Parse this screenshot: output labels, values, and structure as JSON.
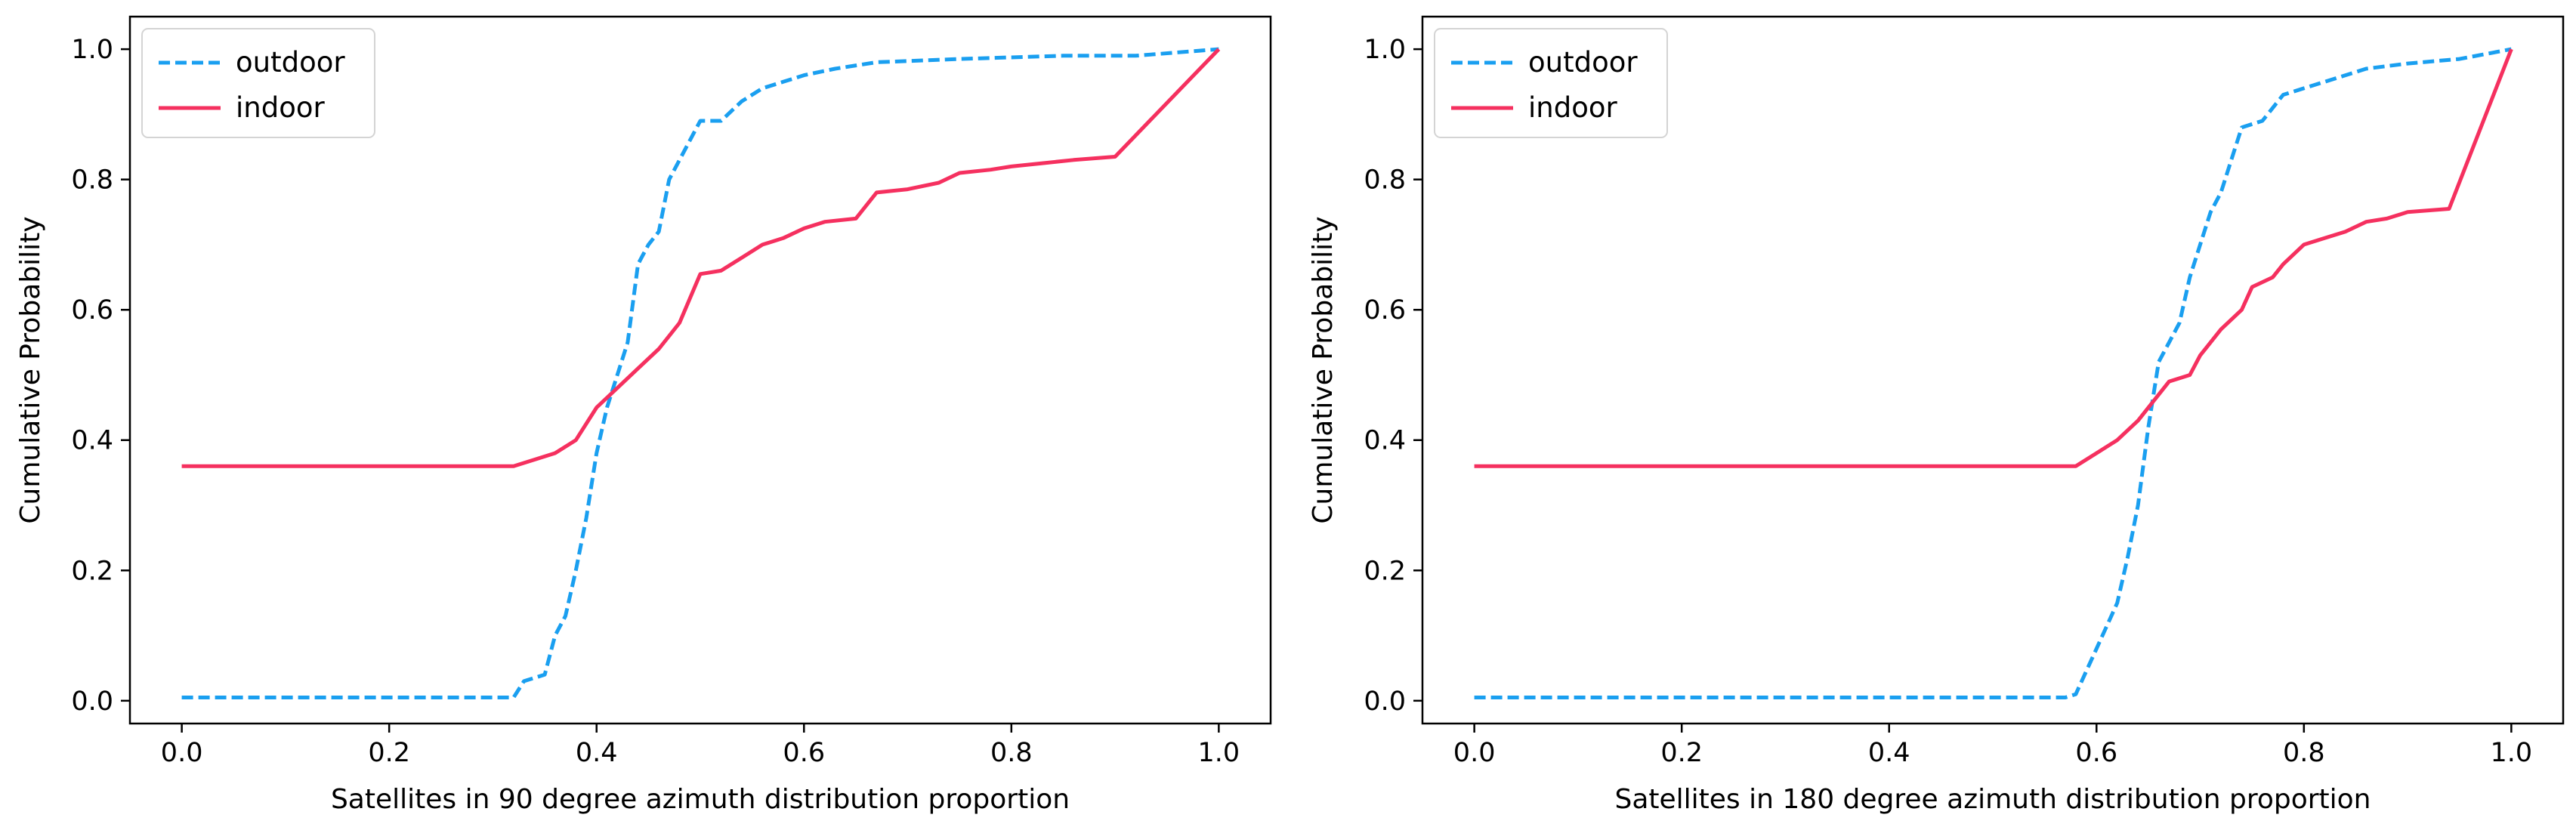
{
  "chart_data": [
    {
      "type": "line",
      "xlabel": "Satellites in 90 degree azimuth distribution proportion",
      "ylabel": "Cumulative Probability",
      "xlim": [
        -0.05,
        1.05
      ],
      "ylim": [
        -0.035,
        1.05
      ],
      "xticks": [
        0.0,
        0.2,
        0.4,
        0.6,
        0.8,
        1.0
      ],
      "xtick_labels": [
        "0.0",
        "0.2",
        "0.4",
        "0.6",
        "0.8",
        "1.0"
      ],
      "yticks": [
        0.0,
        0.2,
        0.4,
        0.6,
        0.8,
        1.0
      ],
      "ytick_labels": [
        "0.0",
        "0.2",
        "0.4",
        "0.6",
        "0.8",
        "1.0"
      ],
      "grid": false,
      "legend": "top-left",
      "series": [
        {
          "name": "outdoor",
          "style": "dashed",
          "color": "#1a9ff0",
          "points": [
            [
              0.0,
              0.005
            ],
            [
              0.32,
              0.005
            ],
            [
              0.33,
              0.03
            ],
            [
              0.35,
              0.04
            ],
            [
              0.36,
              0.1
            ],
            [
              0.37,
              0.13
            ],
            [
              0.38,
              0.2
            ],
            [
              0.39,
              0.28
            ],
            [
              0.4,
              0.38
            ],
            [
              0.41,
              0.45
            ],
            [
              0.42,
              0.5
            ],
            [
              0.43,
              0.55
            ],
            [
              0.44,
              0.67
            ],
            [
              0.45,
              0.7
            ],
            [
              0.46,
              0.72
            ],
            [
              0.47,
              0.8
            ],
            [
              0.48,
              0.83
            ],
            [
              0.5,
              0.89
            ],
            [
              0.52,
              0.89
            ],
            [
              0.54,
              0.92
            ],
            [
              0.56,
              0.94
            ],
            [
              0.58,
              0.95
            ],
            [
              0.6,
              0.96
            ],
            [
              0.63,
              0.97
            ],
            [
              0.67,
              0.98
            ],
            [
              0.75,
              0.985
            ],
            [
              0.85,
              0.99
            ],
            [
              0.92,
              0.99
            ],
            [
              1.0,
              1.0
            ]
          ]
        },
        {
          "name": "indoor",
          "style": "solid",
          "color": "#f5305f",
          "points": [
            [
              0.0,
              0.36
            ],
            [
              0.32,
              0.36
            ],
            [
              0.34,
              0.37
            ],
            [
              0.36,
              0.38
            ],
            [
              0.38,
              0.4
            ],
            [
              0.4,
              0.45
            ],
            [
              0.42,
              0.48
            ],
            [
              0.44,
              0.51
            ],
            [
              0.46,
              0.54
            ],
            [
              0.48,
              0.58
            ],
            [
              0.5,
              0.655
            ],
            [
              0.52,
              0.66
            ],
            [
              0.54,
              0.68
            ],
            [
              0.56,
              0.7
            ],
            [
              0.58,
              0.71
            ],
            [
              0.6,
              0.725
            ],
            [
              0.62,
              0.735
            ],
            [
              0.65,
              0.74
            ],
            [
              0.67,
              0.78
            ],
            [
              0.7,
              0.785
            ],
            [
              0.73,
              0.795
            ],
            [
              0.75,
              0.81
            ],
            [
              0.78,
              0.815
            ],
            [
              0.8,
              0.82
            ],
            [
              0.83,
              0.825
            ],
            [
              0.86,
              0.83
            ],
            [
              0.9,
              0.835
            ],
            [
              1.0,
              1.0
            ]
          ]
        }
      ]
    },
    {
      "type": "line",
      "xlabel": "Satellites in 180 degree azimuth distribution proportion",
      "ylabel": "Cumulative Probability",
      "xlim": [
        -0.05,
        1.05
      ],
      "ylim": [
        -0.035,
        1.05
      ],
      "xticks": [
        0.0,
        0.2,
        0.4,
        0.6,
        0.8,
        1.0
      ],
      "xtick_labels": [
        "0.0",
        "0.2",
        "0.4",
        "0.6",
        "0.8",
        "1.0"
      ],
      "yticks": [
        0.0,
        0.2,
        0.4,
        0.6,
        0.8,
        1.0
      ],
      "ytick_labels": [
        "0.0",
        "0.2",
        "0.4",
        "0.6",
        "0.8",
        "1.0"
      ],
      "grid": false,
      "legend": "top-left",
      "series": [
        {
          "name": "outdoor",
          "style": "dashed",
          "color": "#1a9ff0",
          "points": [
            [
              0.0,
              0.005
            ],
            [
              0.57,
              0.005
            ],
            [
              0.58,
              0.01
            ],
            [
              0.6,
              0.08
            ],
            [
              0.62,
              0.15
            ],
            [
              0.63,
              0.22
            ],
            [
              0.64,
              0.3
            ],
            [
              0.65,
              0.42
            ],
            [
              0.66,
              0.52
            ],
            [
              0.67,
              0.55
            ],
            [
              0.68,
              0.58
            ],
            [
              0.69,
              0.65
            ],
            [
              0.7,
              0.7
            ],
            [
              0.71,
              0.75
            ],
            [
              0.72,
              0.78
            ],
            [
              0.73,
              0.83
            ],
            [
              0.74,
              0.88
            ],
            [
              0.76,
              0.89
            ],
            [
              0.78,
              0.93
            ],
            [
              0.8,
              0.94
            ],
            [
              0.83,
              0.955
            ],
            [
              0.86,
              0.97
            ],
            [
              0.9,
              0.978
            ],
            [
              0.95,
              0.985
            ],
            [
              1.0,
              1.0
            ]
          ]
        },
        {
          "name": "indoor",
          "style": "solid",
          "color": "#f5305f",
          "points": [
            [
              0.0,
              0.36
            ],
            [
              0.58,
              0.36
            ],
            [
              0.6,
              0.38
            ],
            [
              0.62,
              0.4
            ],
            [
              0.64,
              0.43
            ],
            [
              0.66,
              0.47
            ],
            [
              0.67,
              0.49
            ],
            [
              0.69,
              0.5
            ],
            [
              0.7,
              0.53
            ],
            [
              0.72,
              0.57
            ],
            [
              0.74,
              0.6
            ],
            [
              0.75,
              0.635
            ],
            [
              0.77,
              0.65
            ],
            [
              0.78,
              0.67
            ],
            [
              0.8,
              0.7
            ],
            [
              0.82,
              0.71
            ],
            [
              0.84,
              0.72
            ],
            [
              0.86,
              0.735
            ],
            [
              0.88,
              0.74
            ],
            [
              0.9,
              0.75
            ],
            [
              0.94,
              0.755
            ],
            [
              1.0,
              1.0
            ]
          ]
        }
      ]
    }
  ]
}
